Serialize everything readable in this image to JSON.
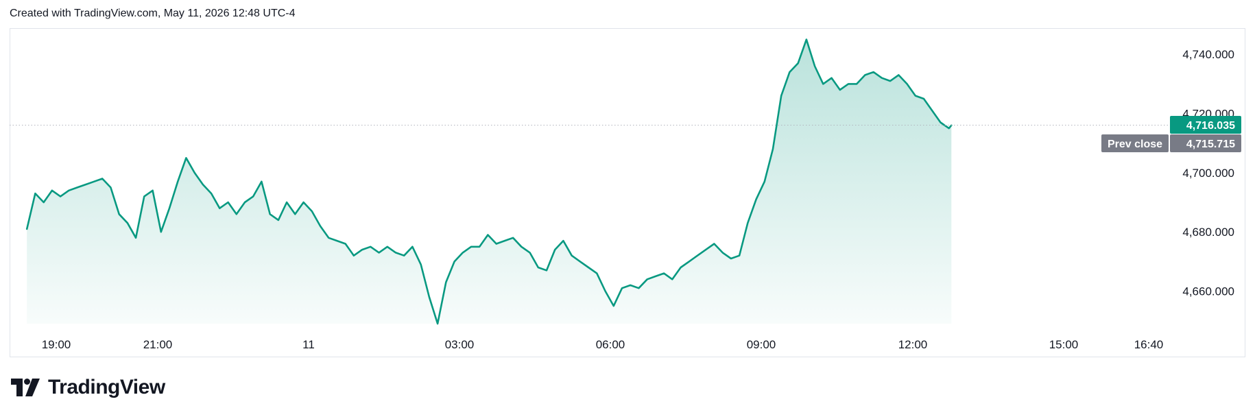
{
  "header": {
    "text": "Created with TradingView.com, May 11, 2026 12:48 UTC-4"
  },
  "logo": {
    "text": "TradingView"
  },
  "colors": {
    "line": "#089981",
    "fill": "#089981",
    "prev_close_tag": "#787b86",
    "grid_dots": "#b2b5be",
    "border": "#e0e3eb"
  },
  "chart_data": {
    "type": "area",
    "title": "",
    "xlabel": "",
    "ylabel": "",
    "x_ticks": [
      "19:00",
      "21:00",
      "11",
      "03:00",
      "06:00",
      "09:00",
      "12:00",
      "15:00",
      "16:40"
    ],
    "y_ticks": [
      "4,660.000",
      "4,680.000",
      "4,700.000",
      "4,720.000",
      "4,740.000"
    ],
    "ylim": [
      4649,
      4747
    ],
    "last_price": {
      "value": 4716.035,
      "label": "4,716.035"
    },
    "prev_close": {
      "value": 4715.715,
      "label": "4,715.715",
      "tag": "Prev close"
    },
    "series": [
      {
        "x": [
          "18:25",
          "18:35",
          "18:45",
          "18:55",
          "19:05",
          "19:15",
          "19:25",
          "19:35",
          "19:45",
          "19:55",
          "20:05",
          "20:15",
          "20:25",
          "20:35",
          "20:45",
          "20:55",
          "21:05",
          "21:15",
          "21:25",
          "21:35",
          "21:45",
          "21:55",
          "22:05",
          "22:15",
          "22:25",
          "22:35",
          "22:45",
          "22:55",
          "23:05",
          "23:15",
          "23:25",
          "23:35",
          "23:45",
          "23:55",
          "00:05",
          "00:15",
          "00:25",
          "00:35",
          "00:45",
          "00:55",
          "01:05",
          "01:15",
          "01:25",
          "01:35",
          "01:45",
          "01:55",
          "02:05",
          "02:15",
          "02:25",
          "02:35",
          "02:45",
          "02:55",
          "03:05",
          "03:15",
          "03:25",
          "03:35",
          "03:45",
          "03:55",
          "04:05",
          "04:15",
          "04:25",
          "04:35",
          "04:45",
          "04:55",
          "05:05",
          "05:15",
          "05:25",
          "05:35",
          "05:45",
          "05:55",
          "06:05",
          "06:15",
          "06:25",
          "06:35",
          "06:45",
          "06:55",
          "07:05",
          "07:15",
          "07:25",
          "07:35",
          "07:45",
          "07:55",
          "08:05",
          "08:15",
          "08:25",
          "08:35",
          "08:45",
          "08:55",
          "09:05",
          "09:15",
          "09:25",
          "09:35",
          "09:45",
          "09:55",
          "10:05",
          "10:15",
          "10:25",
          "10:35",
          "10:45",
          "10:55",
          "11:05",
          "11:15",
          "11:25",
          "11:35",
          "11:45",
          "11:55",
          "12:05",
          "12:15",
          "12:25",
          "12:35",
          "12:45",
          "12:48"
        ],
        "values": [
          4681,
          4693,
          4690,
          4694,
          4692,
          4694,
          4695,
          4696,
          4697,
          4698,
          4695,
          4686,
          4683,
          4678,
          4692,
          4694,
          4680,
          4688,
          4697,
          4705,
          4700,
          4696,
          4693,
          4688,
          4690,
          4686,
          4690,
          4692,
          4697,
          4686,
          4684,
          4690,
          4686,
          4690,
          4687,
          4682,
          4678,
          4677,
          4676,
          4672,
          4674,
          4675,
          4673,
          4675,
          4673,
          4672,
          4675,
          4669,
          4658,
          4649,
          4663,
          4670,
          4673,
          4675,
          4675,
          4679,
          4676,
          4677,
          4678,
          4675,
          4673,
          4668,
          4667,
          4674,
          4677,
          4672,
          4670,
          4668,
          4666,
          4660,
          4655,
          4661,
          4662,
          4661,
          4664,
          4665,
          4666,
          4664,
          4668,
          4670,
          4672,
          4674,
          4676,
          4673,
          4671,
          4672,
          4683,
          4691,
          4697,
          4708,
          4726,
          4734,
          4737,
          4745,
          4736,
          4730,
          4732,
          4728,
          4730,
          4730,
          4733,
          4734,
          4732,
          4731,
          4733,
          4730,
          4726,
          4725,
          4721,
          4717,
          4715,
          4716.035
        ]
      }
    ]
  }
}
